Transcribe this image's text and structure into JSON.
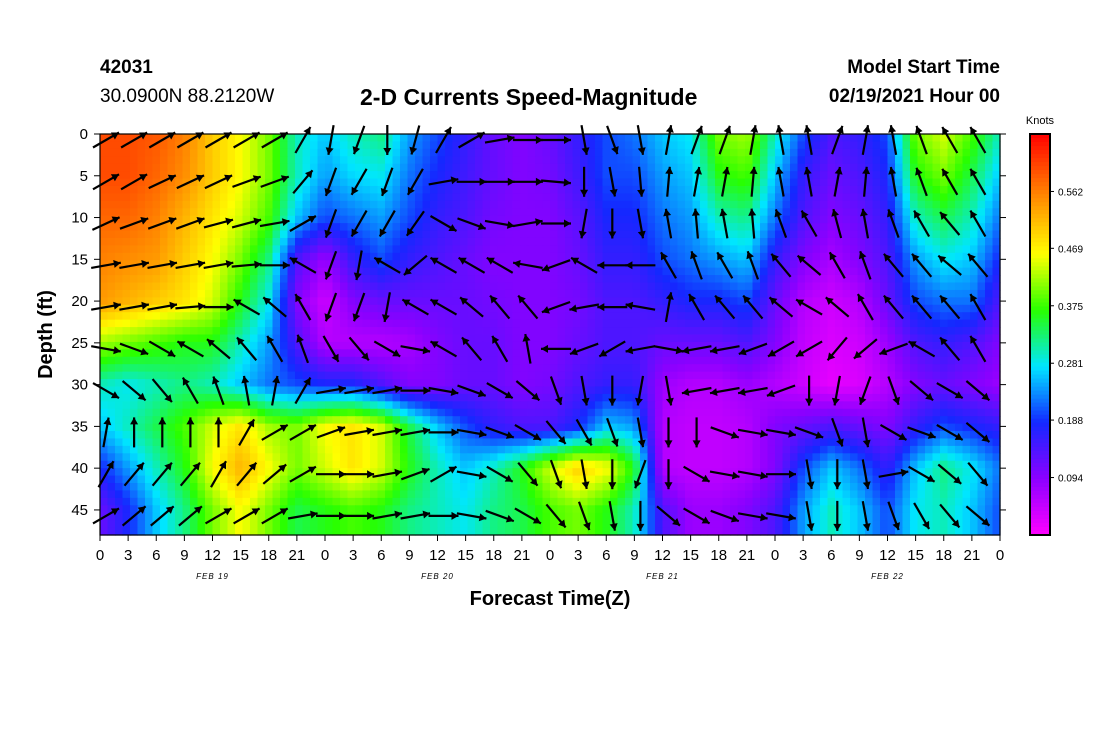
{
  "header": {
    "station_id": "42031",
    "coords": "30.0900N 88.2120W",
    "title": "2-D Currents Speed-Magnitude",
    "start_label": "Model Start Time",
    "start_time": "02/19/2021 Hour 00"
  },
  "chart_data": {
    "type": "heatmap",
    "title": "2-D Currents Speed-Magnitude",
    "xlabel": "Forecast Time(Z)",
    "ylabel": "Depth (ft)",
    "x_ticks": [
      "0",
      "3",
      "6",
      "9",
      "12",
      "15",
      "18",
      "21",
      "0",
      "3",
      "6",
      "9",
      "12",
      "15",
      "18",
      "21",
      "0",
      "3",
      "6",
      "9",
      "12",
      "15",
      "18",
      "21",
      "0",
      "3",
      "6",
      "9",
      "12",
      "15",
      "18",
      "21",
      "0"
    ],
    "date_labels": [
      "FEB 19",
      "FEB 20",
      "FEB 21",
      "FEB 22"
    ],
    "y_ticks": [
      "0",
      "5",
      "10",
      "15",
      "20",
      "25",
      "30",
      "35",
      "40",
      "45"
    ],
    "xlim_hours": [
      0,
      96
    ],
    "ylim_ft": [
      0,
      48
    ],
    "colorbar": {
      "unit": "Knots",
      "range": [
        0,
        0.656
      ],
      "ticks": [
        "0.094",
        "0.188",
        "0.281",
        "0.375",
        "0.469",
        "0.562"
      ]
    },
    "speed_field": {
      "note": "approximate speed magnitude (knots) by depth row (0,5,...,45 ft) and forecast hour (0,3,...,96)",
      "hours": [
        0,
        3,
        6,
        9,
        12,
        15,
        18,
        21,
        24,
        27,
        30,
        33,
        36,
        39,
        42,
        45,
        48,
        51,
        54,
        57,
        60,
        63,
        66,
        69,
        72,
        75,
        78,
        81,
        84,
        87,
        90,
        93,
        96
      ],
      "depths": [
        0,
        5,
        10,
        15,
        20,
        25,
        30,
        35,
        40,
        45
      ],
      "rows": [
        [
          0.6,
          0.6,
          0.59,
          0.56,
          0.5,
          0.46,
          0.4,
          0.3,
          0.26,
          0.3,
          0.32,
          0.24,
          0.2,
          0.16,
          0.12,
          0.1,
          0.12,
          0.16,
          0.2,
          0.22,
          0.26,
          0.28,
          0.4,
          0.42,
          0.3,
          0.2,
          0.14,
          0.16,
          0.2,
          0.4,
          0.44,
          0.38,
          0.3
        ],
        [
          0.6,
          0.6,
          0.58,
          0.55,
          0.5,
          0.46,
          0.4,
          0.3,
          0.24,
          0.27,
          0.28,
          0.22,
          0.18,
          0.15,
          0.12,
          0.1,
          0.11,
          0.15,
          0.2,
          0.2,
          0.24,
          0.26,
          0.36,
          0.38,
          0.26,
          0.16,
          0.12,
          0.14,
          0.18,
          0.36,
          0.4,
          0.34,
          0.26
        ],
        [
          0.58,
          0.58,
          0.56,
          0.52,
          0.48,
          0.44,
          0.38,
          0.26,
          0.2,
          0.22,
          0.24,
          0.2,
          0.16,
          0.14,
          0.11,
          0.1,
          0.1,
          0.13,
          0.18,
          0.18,
          0.22,
          0.24,
          0.3,
          0.32,
          0.22,
          0.14,
          0.1,
          0.12,
          0.16,
          0.3,
          0.34,
          0.3,
          0.22
        ],
        [
          0.56,
          0.55,
          0.54,
          0.5,
          0.46,
          0.4,
          0.32,
          0.14,
          0.08,
          0.16,
          0.2,
          0.16,
          0.14,
          0.12,
          0.1,
          0.1,
          0.1,
          0.12,
          0.16,
          0.16,
          0.2,
          0.22,
          0.24,
          0.26,
          0.16,
          0.1,
          0.07,
          0.1,
          0.14,
          0.24,
          0.28,
          0.26,
          0.18
        ],
        [
          0.54,
          0.52,
          0.5,
          0.48,
          0.44,
          0.36,
          0.28,
          0.1,
          0.04,
          0.1,
          0.12,
          0.12,
          0.12,
          0.12,
          0.11,
          0.1,
          0.1,
          0.11,
          0.14,
          0.14,
          0.16,
          0.18,
          0.18,
          0.2,
          0.12,
          0.06,
          0.04,
          0.06,
          0.12,
          0.2,
          0.22,
          0.22,
          0.14
        ],
        [
          0.42,
          0.4,
          0.38,
          0.36,
          0.36,
          0.3,
          0.24,
          0.14,
          0.06,
          0.06,
          0.06,
          0.07,
          0.1,
          0.12,
          0.12,
          0.1,
          0.1,
          0.12,
          0.14,
          0.14,
          0.12,
          0.12,
          0.12,
          0.14,
          0.1,
          0.05,
          0.03,
          0.04,
          0.08,
          0.14,
          0.16,
          0.14,
          0.1
        ],
        [
          0.3,
          0.28,
          0.3,
          0.32,
          0.3,
          0.26,
          0.22,
          0.2,
          0.18,
          0.18,
          0.14,
          0.1,
          0.1,
          0.12,
          0.12,
          0.1,
          0.11,
          0.14,
          0.16,
          0.16,
          0.08,
          0.06,
          0.06,
          0.08,
          0.06,
          0.04,
          0.02,
          0.03,
          0.06,
          0.1,
          0.12,
          0.1,
          0.08
        ],
        [
          0.26,
          0.3,
          0.34,
          0.38,
          0.44,
          0.48,
          0.42,
          0.4,
          0.46,
          0.48,
          0.44,
          0.34,
          0.26,
          0.2,
          0.16,
          0.14,
          0.14,
          0.18,
          0.26,
          0.24,
          0.06,
          0.05,
          0.05,
          0.06,
          0.1,
          0.12,
          0.14,
          0.12,
          0.1,
          0.16,
          0.2,
          0.18,
          0.16
        ],
        [
          0.18,
          0.24,
          0.3,
          0.36,
          0.46,
          0.52,
          0.46,
          0.4,
          0.44,
          0.48,
          0.44,
          0.36,
          0.3,
          0.26,
          0.3,
          0.36,
          0.44,
          0.5,
          0.46,
          0.36,
          0.06,
          0.05,
          0.05,
          0.06,
          0.1,
          0.2,
          0.26,
          0.22,
          0.16,
          0.26,
          0.32,
          0.28,
          0.22
        ],
        [
          0.12,
          0.18,
          0.26,
          0.32,
          0.4,
          0.46,
          0.4,
          0.34,
          0.36,
          0.38,
          0.36,
          0.32,
          0.3,
          0.28,
          0.32,
          0.34,
          0.38,
          0.4,
          0.36,
          0.3,
          0.14,
          0.08,
          0.08,
          0.1,
          0.14,
          0.24,
          0.3,
          0.26,
          0.2,
          0.28,
          0.3,
          0.26,
          0.2
        ]
      ]
    },
    "arrow_angles_deg": {
      "note": "approximate current direction per depth row (0,5,...,45 ft), degrees clockwise from up",
      "rows": [
        [
          60,
          60,
          60,
          60,
          60,
          60,
          60,
          30,
          190,
          200,
          180,
          195,
          30,
          60,
          80,
          90,
          90,
          170,
          160,
          170,
          10,
          20,
          20,
          10,
          350,
          350,
          20,
          10,
          350,
          340,
          330,
          330,
          340
        ],
        [
          60,
          60,
          65,
          65,
          65,
          70,
          70,
          40,
          200,
          210,
          200,
          210,
          80,
          90,
          90,
          90,
          95,
          180,
          170,
          175,
          5,
          10,
          10,
          5,
          350,
          350,
          10,
          5,
          350,
          340,
          330,
          330,
          340
        ],
        [
          65,
          70,
          70,
          70,
          75,
          75,
          80,
          60,
          200,
          210,
          210,
          215,
          120,
          110,
          100,
          80,
          90,
          190,
          180,
          170,
          350,
          355,
          350,
          355,
          340,
          330,
          345,
          350,
          340,
          330,
          320,
          330,
          340
        ],
        [
          80,
          80,
          80,
          80,
          80,
          85,
          90,
          300,
          200,
          190,
          300,
          230,
          300,
          300,
          300,
          280,
          250,
          300,
          270,
          270,
          330,
          340,
          330,
          340,
          320,
          310,
          330,
          340,
          320,
          320,
          310,
          320,
          340
        ],
        [
          80,
          80,
          80,
          85,
          90,
          300,
          310,
          330,
          200,
          200,
          190,
          300,
          300,
          310,
          320,
          320,
          250,
          260,
          270,
          280,
          10,
          330,
          320,
          320,
          310,
          300,
          310,
          330,
          320,
          320,
          320,
          330,
          340
        ],
        [
          100,
          110,
          120,
          300,
          310,
          320,
          330,
          340,
          150,
          140,
          120,
          100,
          300,
          320,
          330,
          350,
          270,
          250,
          240,
          260,
          100,
          260,
          260,
          250,
          240,
          240,
          220,
          230,
          250,
          300,
          320,
          330,
          70
        ],
        [
          120,
          130,
          140,
          330,
          340,
          350,
          10,
          30,
          80,
          80,
          80,
          90,
          100,
          110,
          120,
          130,
          160,
          170,
          180,
          190,
          170,
          260,
          260,
          260,
          250,
          180,
          190,
          200,
          160,
          130,
          120,
          130,
          140
        ],
        [
          10,
          0,
          0,
          0,
          0,
          30,
          60,
          60,
          70,
          80,
          80,
          80,
          90,
          100,
          110,
          120,
          140,
          150,
          160,
          170,
          180,
          180,
          110,
          100,
          100,
          110,
          160,
          170,
          120,
          110,
          120,
          130,
          140
        ],
        [
          30,
          40,
          40,
          40,
          30,
          40,
          50,
          60,
          90,
          90,
          80,
          70,
          60,
          100,
          120,
          140,
          160,
          170,
          180,
          200,
          180,
          120,
          100,
          100,
          90,
          170,
          180,
          170,
          80,
          120,
          130,
          140,
          150
        ],
        [
          60,
          50,
          50,
          50,
          60,
          60,
          60,
          80,
          90,
          90,
          80,
          80,
          90,
          100,
          110,
          120,
          140,
          160,
          170,
          180,
          130,
          120,
          110,
          100,
          100,
          170,
          180,
          170,
          160,
          150,
          140,
          130,
          140
        ]
      ]
    }
  }
}
